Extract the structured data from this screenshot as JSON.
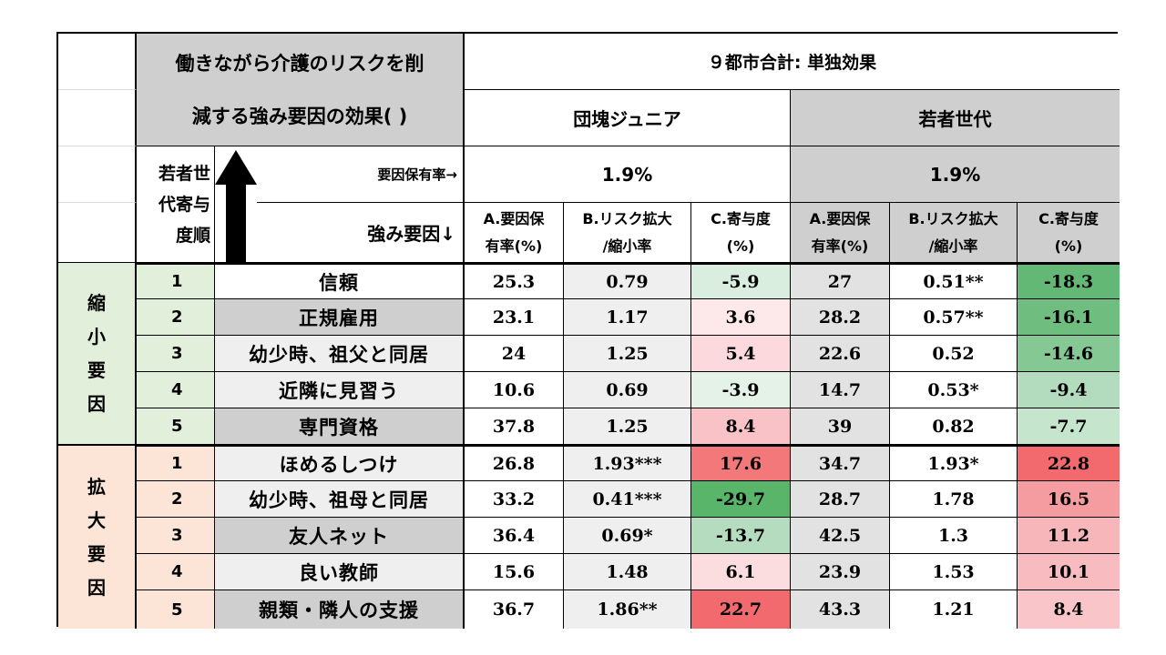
{
  "table": {
    "title_line1": "働きながら介護のリスクを削",
    "title_line2": "減する強み要因の効果( )",
    "main_header": "９都市合計: 単独効果",
    "group_dan": "団塊ジュニア",
    "group_wak": "若者世代",
    "rank_header": [
      "若者世",
      "代寄与",
      "度順"
    ],
    "rate_label": "要因保有率→",
    "factor_label": "強み要因↓",
    "rate_dan": "1.9%",
    "rate_wak": "1.9%",
    "col_a": [
      "A.要因保",
      "有率(%)"
    ],
    "col_b": [
      "B.リスク拡大",
      "/縮小率"
    ],
    "col_c": [
      "C.寄与度",
      "(%)"
    ],
    "group_reduce": [
      "縮",
      "小",
      "要",
      "因"
    ],
    "group_expand": [
      "拡",
      "大",
      "要",
      "因"
    ],
    "rows": [
      {
        "rank": "1",
        "factor": "信頼",
        "a1": "25.3",
        "b1": "0.79",
        "c1": "-5.9",
        "a2": "27",
        "b2": "0.51**",
        "c2": "-18.3"
      },
      {
        "rank": "2",
        "factor": "正規雇用",
        "a1": "23.1",
        "b1": "1.17",
        "c1": "3.6",
        "a2": "28.2",
        "b2": "0.57**",
        "c2": "-16.1"
      },
      {
        "rank": "3",
        "factor": "幼少時、祖父と同居",
        "a1": "24",
        "b1": "1.25",
        "c1": "5.4",
        "a2": "22.6",
        "b2": "0.52",
        "c2": "-14.6"
      },
      {
        "rank": "4",
        "factor": "近隣に見習う",
        "a1": "10.6",
        "b1": "0.69",
        "c1": "-3.9",
        "a2": "14.7",
        "b2": "0.53*",
        "c2": "-9.4"
      },
      {
        "rank": "5",
        "factor": "専門資格",
        "a1": "37.8",
        "b1": "1.25",
        "c1": "8.4",
        "a2": "39",
        "b2": "0.82",
        "c2": "-7.7"
      },
      {
        "rank": "1",
        "factor": "ほめるしつけ",
        "a1": "26.8",
        "b1": "1.93***",
        "c1": "17.6",
        "a2": "34.7",
        "b2": "1.93*",
        "c2": "22.8"
      },
      {
        "rank": "2",
        "factor": "幼少時、祖母と同居",
        "a1": "33.2",
        "b1": "0.41***",
        "c1": "-29.7",
        "a2": "28.7",
        "b2": "1.78",
        "c2": "16.5"
      },
      {
        "rank": "3",
        "factor": "友人ネット",
        "a1": "36.4",
        "b1": "0.69*",
        "c1": "-13.7",
        "a2": "42.5",
        "b2": "1.3",
        "c2": "11.2"
      },
      {
        "rank": "4",
        "factor": "良い教師",
        "a1": "15.6",
        "b1": "1.48",
        "c1": "6.1",
        "a2": "23.9",
        "b2": "1.53",
        "c2": "10.1"
      },
      {
        "rank": "5",
        "factor": "親類・隣人の支援",
        "a1": "36.7",
        "b1": "1.86**",
        "c1": "22.7",
        "a2": "43.3",
        "b2": "1.21",
        "c2": "8.4"
      }
    ],
    "colors": {
      "factor_bg": [
        "#ffffff",
        "#cfcfcf",
        "#efefef",
        "#efefef",
        "#cfcfcf",
        "#efefef",
        "#efefef",
        "#cfcfcf",
        "#efefef",
        "#cfcfcf"
      ],
      "c1_bg": [
        "#d9eedf",
        "#fde9ea",
        "#fbd9dc",
        "#e4f2e8",
        "#f8c2c6",
        "#f3787a",
        "#58b56a",
        "#b5dcbf",
        "#fbdde0",
        "#f26a6e"
      ],
      "c2_bg": [
        "#62b874",
        "#6fbe7f",
        "#85c893",
        "#b3dbbe",
        "#c6e5cd",
        "#f26a6e",
        "#f49ca0",
        "#f7b6ba",
        "#f8bcc0",
        "#f9c5c9"
      ]
    }
  }
}
